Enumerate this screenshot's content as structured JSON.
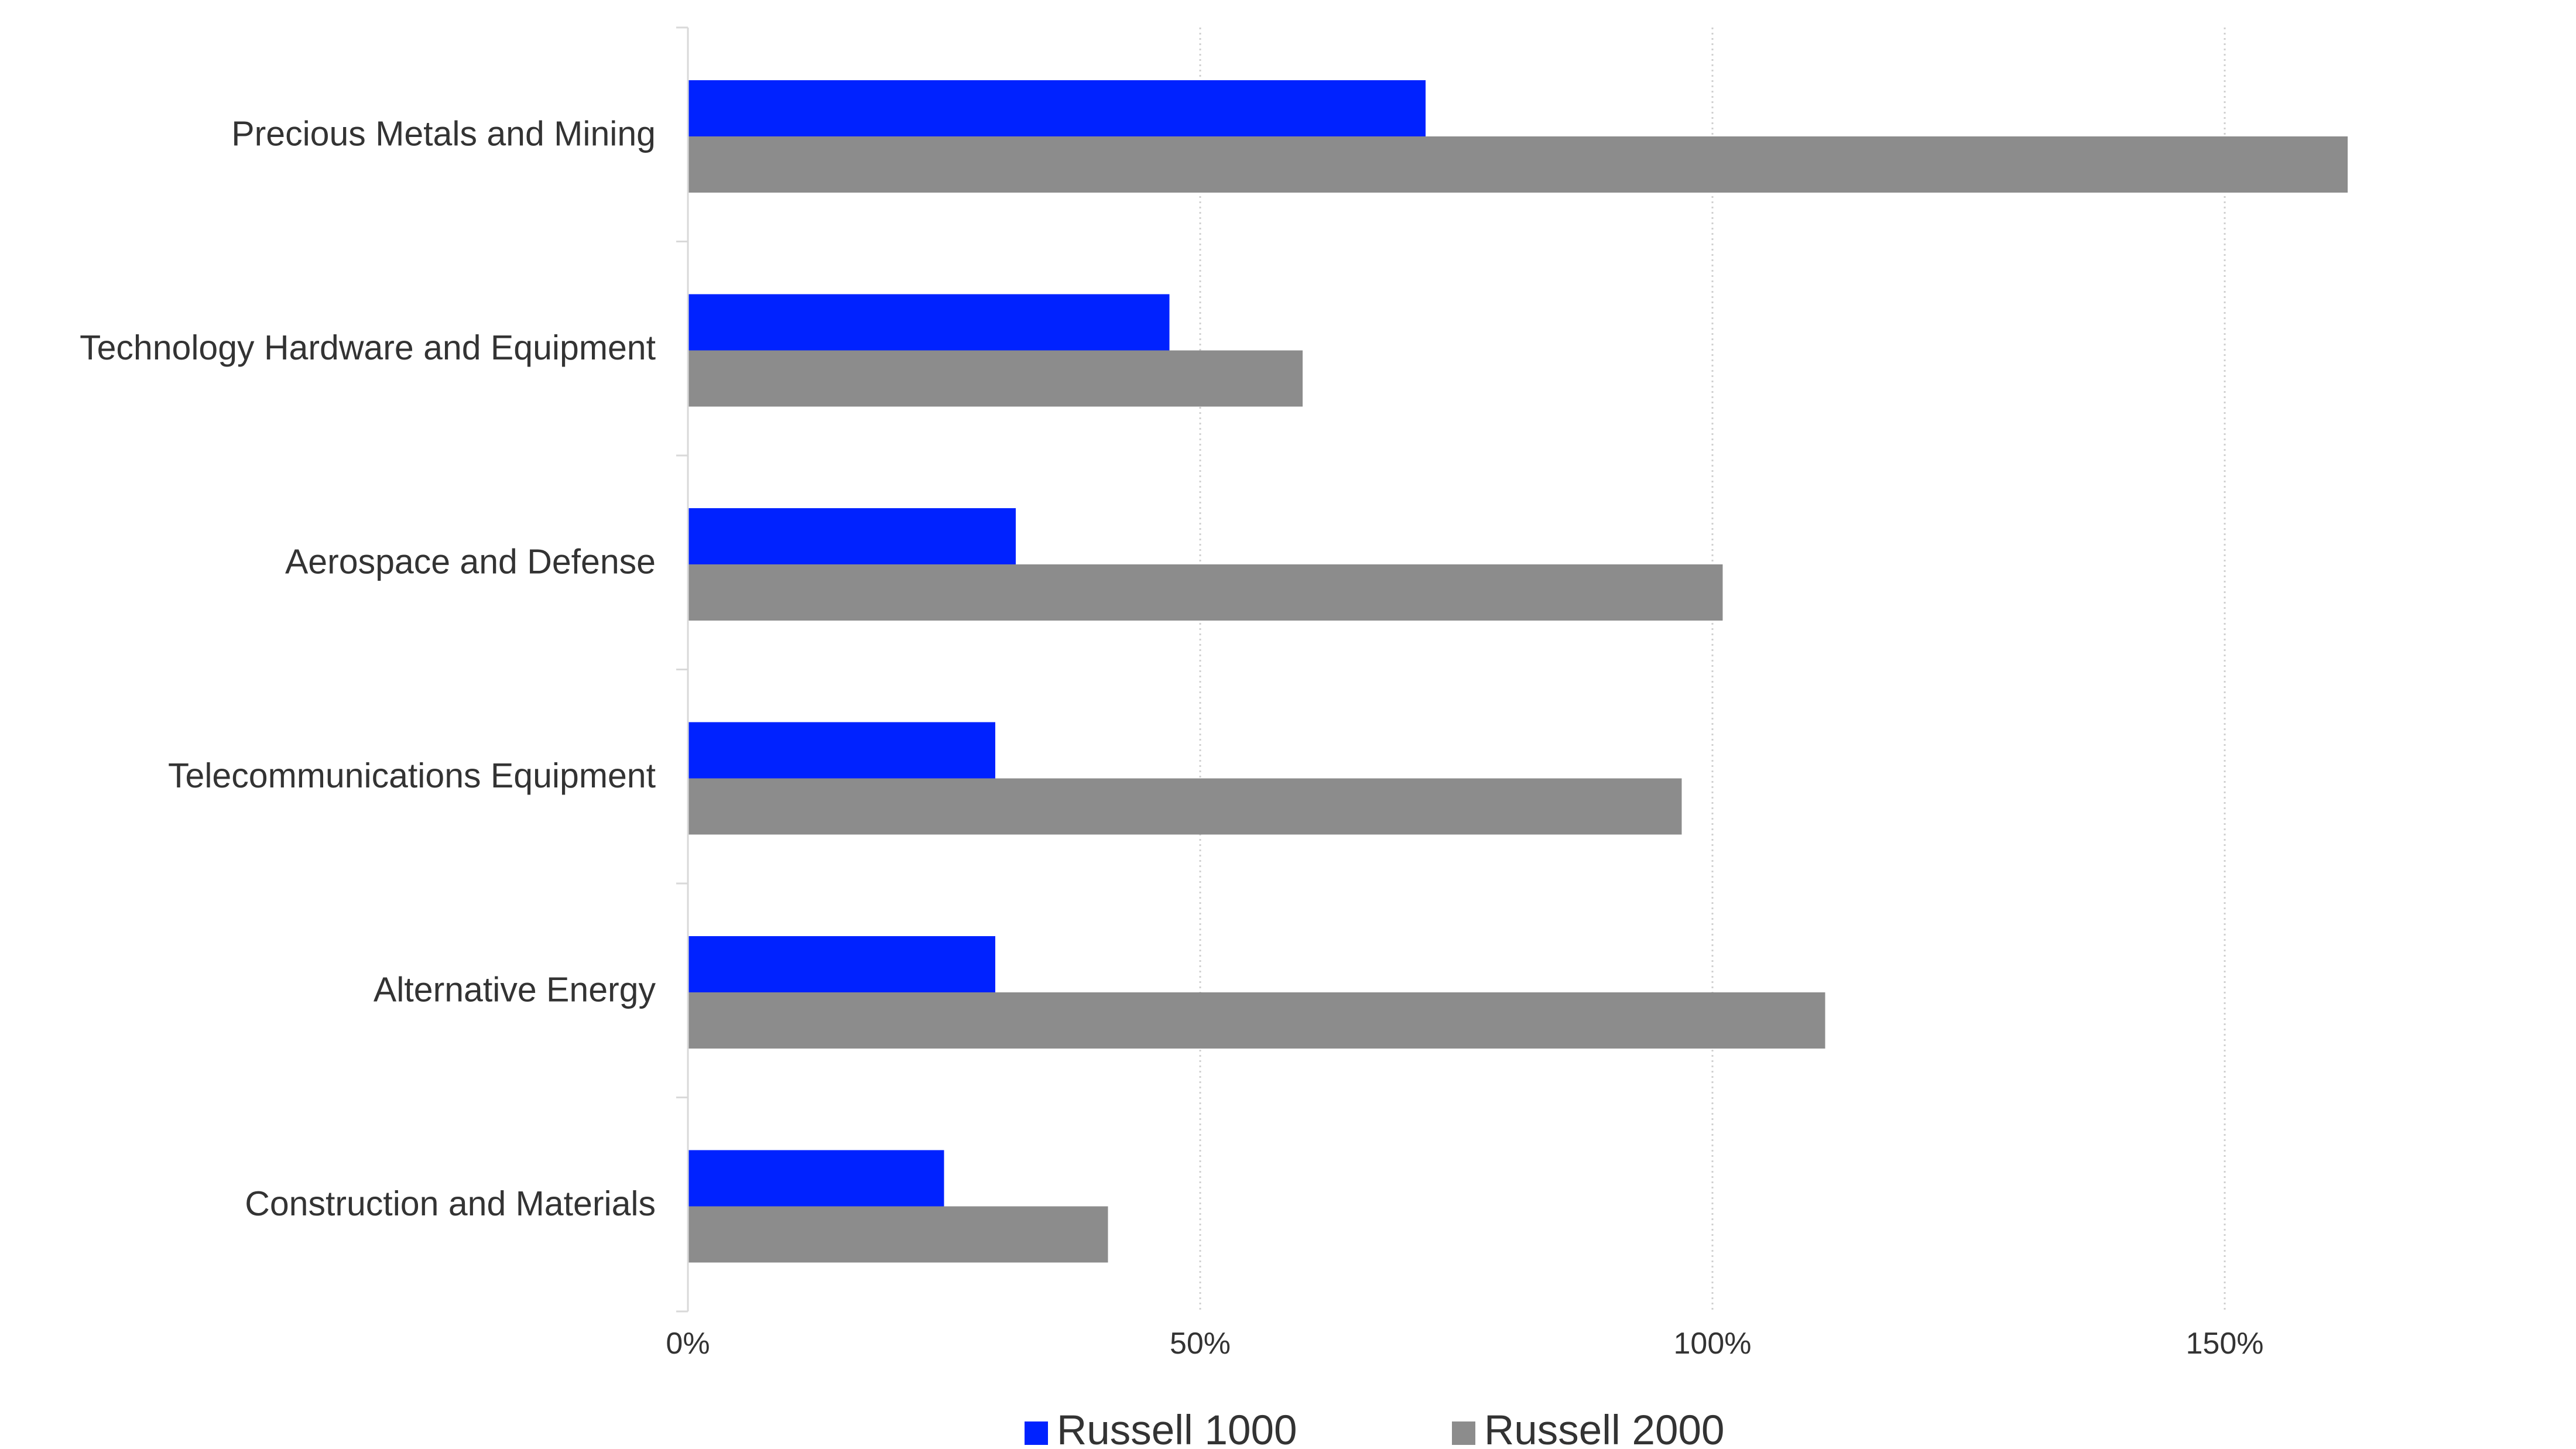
{
  "chart_data": {
    "type": "bar",
    "orientation": "horizontal",
    "categories": [
      "Precious Metals and Mining",
      "Technology Hardware and Equipment",
      "Aerospace and Defense",
      "Telecommunications Equipment",
      "Alternative Energy",
      "Construction and Materials"
    ],
    "series": [
      {
        "name": "Russell 1000",
        "color": "#0022ff",
        "values": [
          72,
          47,
          32,
          30,
          30,
          25
        ]
      },
      {
        "name": "Russell 2000",
        "color": "#8c8c8c",
        "values": [
          162,
          60,
          101,
          97,
          111,
          41
        ]
      }
    ],
    "x_ticks": [
      "0%",
      "50%",
      "100%",
      "150%"
    ],
    "x_tick_values": [
      0,
      50,
      100,
      150
    ],
    "xlim": [
      0,
      180
    ],
    "grid": "vertical dotted",
    "legend": "bottom-center"
  }
}
